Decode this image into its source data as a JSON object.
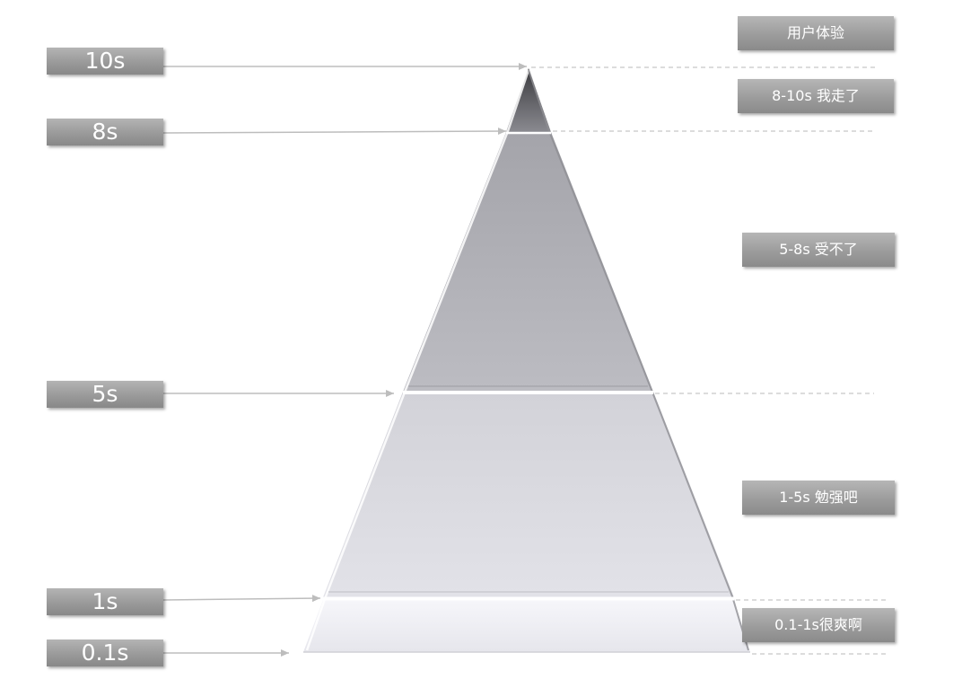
{
  "time_marks": [
    {
      "label": "10s"
    },
    {
      "label": "8s"
    },
    {
      "label": "5s"
    },
    {
      "label": "1s"
    },
    {
      "label": "0.1s"
    }
  ],
  "experience_header": "用户体验",
  "experience_levels": [
    {
      "label": "8-10s 我走了"
    },
    {
      "label": "5-8s 受不了"
    },
    {
      "label": "1-5s 勉强吧"
    },
    {
      "label": "0.1-1s很爽啊"
    }
  ],
  "colors": {
    "tier_top": "#5e5e62",
    "tier_upper": "#b0b0b6",
    "tier_middle": "#d8d8de",
    "tier_base": "#f0f0f5",
    "arrow": "#bdbdbd",
    "dashed_line": "#c8c8c8",
    "label_bg": "#9a9a9a"
  }
}
